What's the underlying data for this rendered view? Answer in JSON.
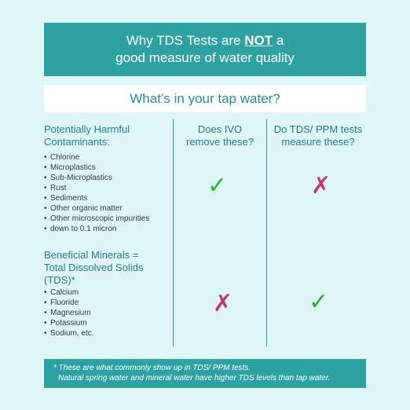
{
  "header": {
    "line1_before": "Why TDS Tests are ",
    "line1_emphasis": "NOT",
    "line1_after": " a",
    "line2": "good measure of water quality"
  },
  "subheader": "What’s in your tap water?",
  "columns": {
    "ivo_line1": "Does IVO",
    "ivo_line2": "remove these?",
    "tds_line1": "Do TDS/ PPM tests",
    "tds_line2": "measure these?"
  },
  "harmful": {
    "title_line1": "Potentially Harmful",
    "title_line2": "Contaminants:",
    "items": [
      "Chlorine",
      "Microplastics",
      "Sub-Microplastics",
      "Rust",
      "Sediments",
      "Other organic matter",
      "Other microscopic impurities",
      "down to 0.1 micron"
    ],
    "ivo_removes": "✓",
    "tds_measures": "✗"
  },
  "beneficial": {
    "title_line1": "Beneficial Minerals =",
    "title_line2": "Total Dissolved Solids",
    "title_line3": "(TDS)*",
    "items": [
      "Calcium",
      "Fluoride",
      "Magnesium",
      "Potassium",
      "Sodium, etc."
    ],
    "ivo_removes": "✗",
    "tds_measures": "✓"
  },
  "footer": {
    "line1": "* These are what commonly show up in TDS/ PPM tests.",
    "line2": "Natural spring water and mineral water have higher TDS levels than tap water."
  },
  "colors": {
    "accent": "#2ea2a2",
    "background": "#dff6f6",
    "check": "#2fae3c",
    "cross": "#c23a66"
  }
}
